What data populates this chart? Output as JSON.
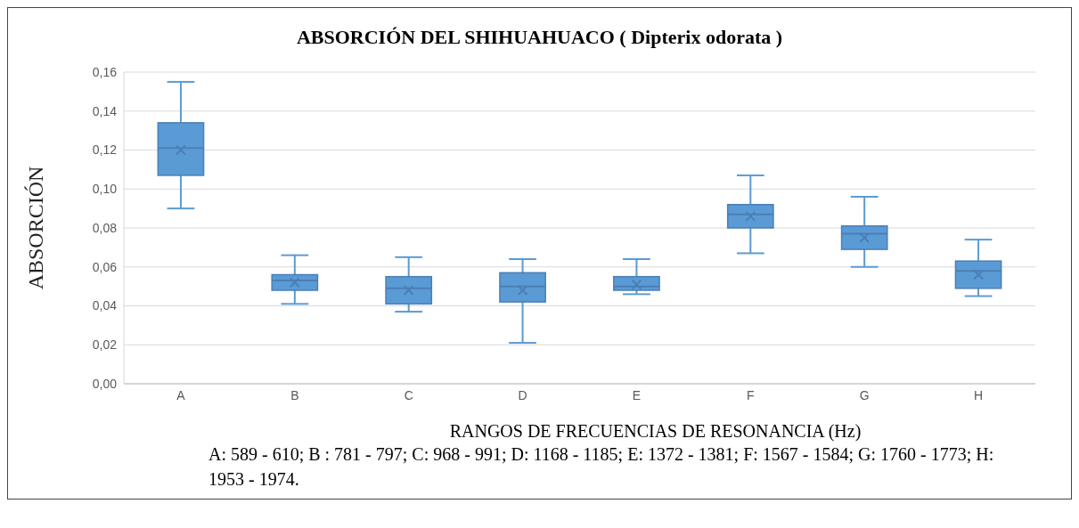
{
  "chart_data": {
    "type": "box",
    "title": "ABSORCIÓN DEL SHIHUAHUACO ( Dipterix odorata )",
    "xlabel": "RANGOS DE FRECUENCIAS DE RESONANCIA (Hz)",
    "ylabel": "ABSORCIÓN",
    "categories": [
      "A",
      "B",
      "C",
      "D",
      "E",
      "F",
      "G",
      "H"
    ],
    "color": "#5b9bd5",
    "boxes": [
      {
        "low": 0.09,
        "q1": 0.107,
        "median": 0.121,
        "q3": 0.134,
        "high": 0.155,
        "mean": 0.12
      },
      {
        "low": 0.041,
        "q1": 0.048,
        "median": 0.053,
        "q3": 0.056,
        "high": 0.066,
        "mean": 0.052
      },
      {
        "low": 0.037,
        "q1": 0.041,
        "median": 0.049,
        "q3": 0.055,
        "high": 0.065,
        "mean": 0.048
      },
      {
        "low": 0.021,
        "q1": 0.042,
        "median": 0.05,
        "q3": 0.057,
        "high": 0.064,
        "mean": 0.048
      },
      {
        "low": 0.046,
        "q1": 0.048,
        "median": 0.05,
        "q3": 0.055,
        "high": 0.064,
        "mean": 0.051
      },
      {
        "low": 0.067,
        "q1": 0.08,
        "median": 0.087,
        "q3": 0.092,
        "high": 0.107,
        "mean": 0.086
      },
      {
        "low": 0.06,
        "q1": 0.069,
        "median": 0.077,
        "q3": 0.081,
        "high": 0.096,
        "mean": 0.075
      },
      {
        "low": 0.045,
        "q1": 0.049,
        "median": 0.058,
        "q3": 0.063,
        "high": 0.074,
        "mean": 0.056
      }
    ],
    "ylim": [
      0,
      0.16
    ],
    "yticks": [
      {
        "value": 0,
        "label": "0,00"
      },
      {
        "value": 0.02,
        "label": "0,02"
      },
      {
        "value": 0.04,
        "label": "0,04"
      },
      {
        "value": 0.06,
        "label": "0,06"
      },
      {
        "value": 0.08,
        "label": "0,08"
      },
      {
        "value": 0.1,
        "label": "0,10"
      },
      {
        "value": 0.12,
        "label": "0,12"
      },
      {
        "value": 0.14,
        "label": "0,14"
      },
      {
        "value": 0.16,
        "label": "0,16"
      }
    ],
    "grid": "y",
    "annotations": [
      "A:  589 - 610; B : 781 - 797; C: 968 - 991; D: 1168 - 1185;  E: 1372 - 1381;   F: 1567 - 1584;  G: 1760 - 1773; H: 1953 - 1974."
    ]
  }
}
